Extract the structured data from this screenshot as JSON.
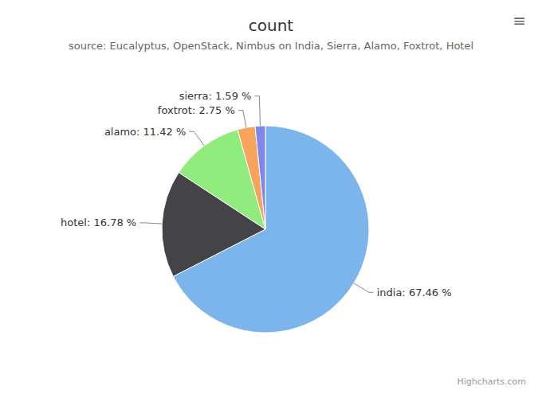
{
  "chart_data": {
    "type": "pie",
    "title": "count",
    "subtitle": "source: Eucalyptus, OpenStack, Nimbus on India, Sierra, Alamo, Foxtrot, Hotel",
    "categories": [
      "india",
      "hotel",
      "alamo",
      "foxtrot",
      "sierra"
    ],
    "values": [
      67.46,
      16.78,
      11.42,
      2.75,
      1.59
    ],
    "value_labels": [
      "india: 67.46 %",
      "hotel: 16.78 %",
      "alamo: 11.42 %",
      "foxtrot: 2.75 %",
      "sierra: 1.59 %"
    ],
    "colors": [
      "#7cb5ec",
      "#434348",
      "#90ed7d",
      "#f7a35c",
      "#8085e9"
    ],
    "data_labels": true,
    "annotations": [
      "Highcharts.com",
      "≡"
    ]
  }
}
